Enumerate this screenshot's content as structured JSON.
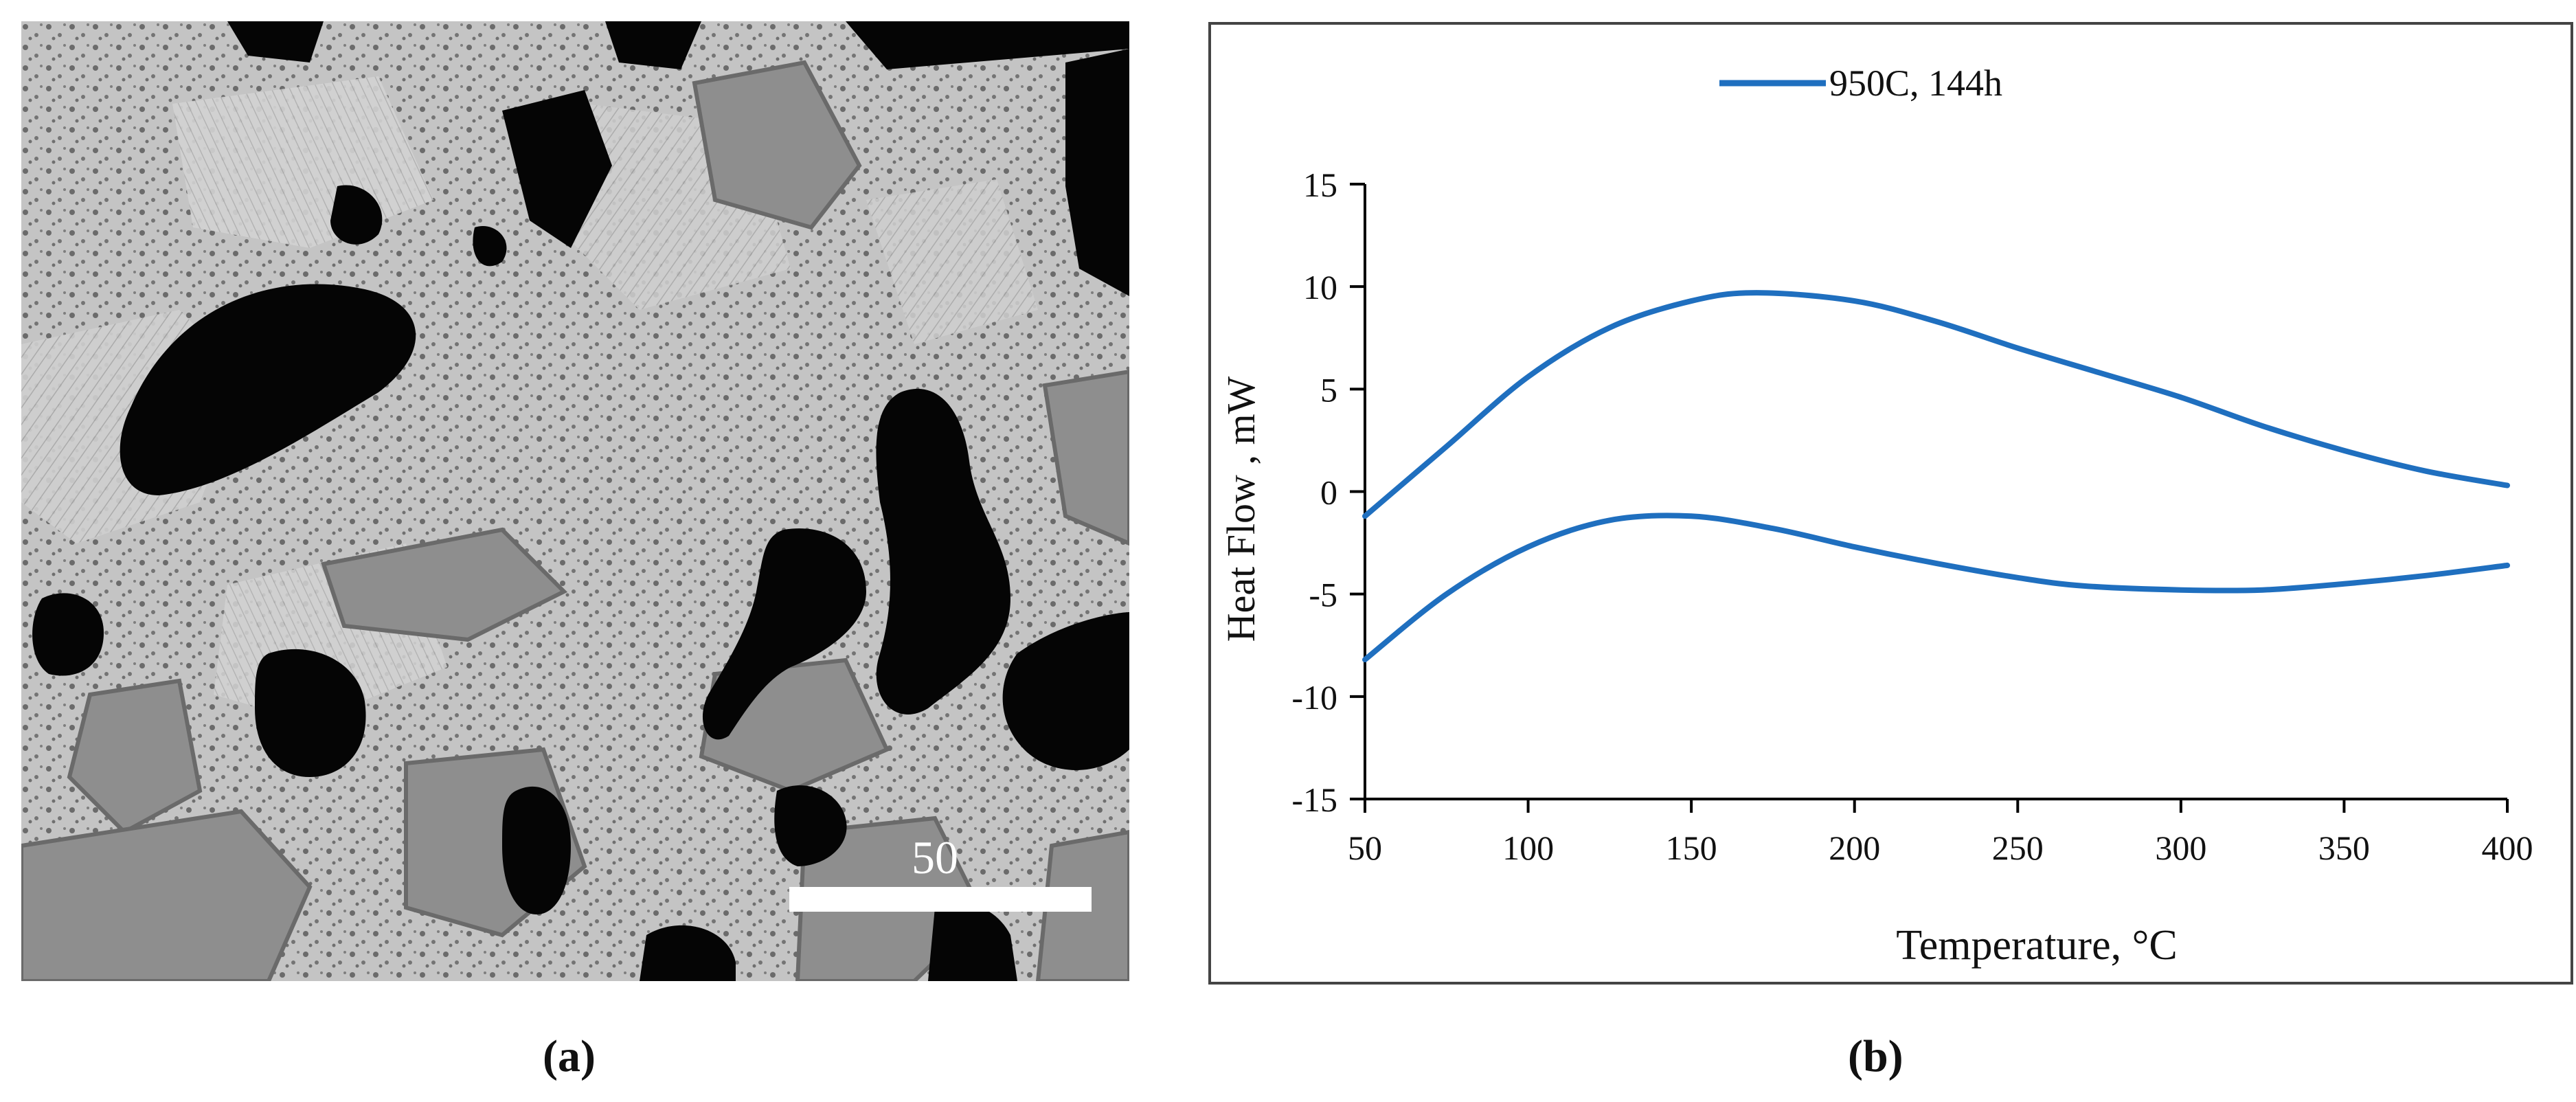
{
  "panel_a": {
    "scale_bar_label": "50",
    "caption": "(a)"
  },
  "panel_b": {
    "caption": "(b)"
  },
  "colors": {
    "series": "#1f6fbf",
    "axis": "#000000",
    "frame": "#444444",
    "matrix": "#c4c4c4",
    "pores": "#050505",
    "phase": "#8e8e8e"
  },
  "chart_data": {
    "type": "line",
    "title": "",
    "xlabel": "Temperature, °C",
    "ylabel": "Heat Flow , mW",
    "xlim": [
      50,
      400
    ],
    "ylim": [
      -15,
      15
    ],
    "xticks": [
      50,
      100,
      150,
      200,
      250,
      300,
      350,
      400
    ],
    "yticks": [
      -15,
      -10,
      -5,
      0,
      5,
      10,
      15
    ],
    "grid": false,
    "legend": "top-left",
    "series": [
      {
        "name": "950C, 144h",
        "points": [
          [
            50,
            -1.2
          ],
          [
            75,
            2.2
          ],
          [
            100,
            5.6
          ],
          [
            125,
            8.0
          ],
          [
            150,
            9.3
          ],
          [
            170,
            9.7
          ],
          [
            200,
            9.3
          ],
          [
            225,
            8.3
          ],
          [
            250,
            7.0
          ],
          [
            275,
            5.8
          ],
          [
            300,
            4.6
          ],
          [
            325,
            3.2
          ],
          [
            350,
            2.0
          ],
          [
            375,
            1.0
          ],
          [
            400,
            0.3
          ]
        ]
      },
      {
        "name": "",
        "points": [
          [
            50,
            -8.2
          ],
          [
            75,
            -5.0
          ],
          [
            100,
            -2.7
          ],
          [
            125,
            -1.4
          ],
          [
            150,
            -1.2
          ],
          [
            175,
            -1.8
          ],
          [
            200,
            -2.7
          ],
          [
            225,
            -3.5
          ],
          [
            250,
            -4.2
          ],
          [
            270,
            -4.6
          ],
          [
            300,
            -4.8
          ],
          [
            325,
            -4.8
          ],
          [
            350,
            -4.5
          ],
          [
            375,
            -4.1
          ],
          [
            400,
            -3.6
          ]
        ]
      }
    ]
  }
}
